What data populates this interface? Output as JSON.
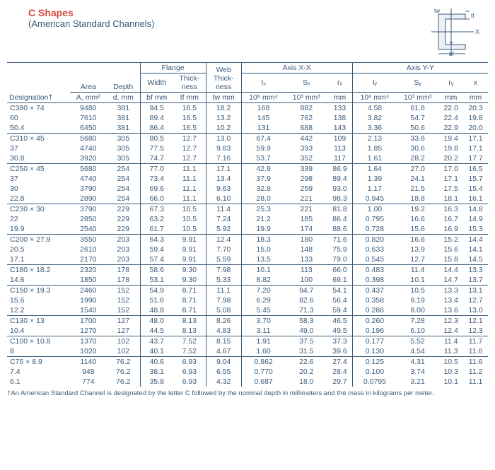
{
  "title": {
    "main": "C Shapes",
    "sub": "(American Standard Channels)"
  },
  "diagram_labels": {
    "tf": "tf",
    "tw": "tw",
    "x": "X",
    "y": "Y",
    "bf": "bf"
  },
  "headers": {
    "flange": "Flange",
    "web": "Web",
    "axis_xx": "Axis X-X",
    "axis_yy": "Axis Y-Y",
    "designation": "Designation†",
    "area": "Area",
    "depth": "Depth",
    "width": "Width",
    "thick": "Thick-",
    "ness": "ness",
    "A": "A, mm²",
    "d": "d, mm",
    "bf": "bf mm",
    "tf": "tf mm",
    "tw": "tw mm",
    "Ix": "Iₓ",
    "Ix_u": "10⁶ mm⁴",
    "Sx": "Sₓ",
    "Sx_u": "10³ mm³",
    "rx": "rₓ",
    "rx_u": "mm",
    "Iy": "Iᵧ",
    "Iy_u": "10⁶ mm⁴",
    "Sy": "Sᵧ",
    "Sy_u": "10³ mm³",
    "ry": "rᵧ",
    "ry_u": "mm",
    "xbar": "x",
    "xbar_u": "mm"
  },
  "groups": [
    {
      "rows": [
        [
          "C380 × 74",
          "9480",
          "381",
          "94.5",
          "16.5",
          "18.2",
          "168",
          "882",
          "133",
          "4.58",
          "61.8",
          "22.0",
          "20.3"
        ],
        [
          "60",
          "7610",
          "381",
          "89.4",
          "16.5",
          "13.2",
          "145",
          "762",
          "138",
          "3.82",
          "54.7",
          "22.4",
          "19.8"
        ],
        [
          "50.4",
          "6450",
          "381",
          "86.4",
          "16.5",
          "10.2",
          "131",
          "688",
          "143",
          "3.36",
          "50.6",
          "22.9",
          "20.0"
        ]
      ]
    },
    {
      "rows": [
        [
          "C310 × 45",
          "5680",
          "305",
          "80.5",
          "12.7",
          "13.0",
          "67.4",
          "442",
          "109",
          "2.13",
          "33.6",
          "19.4",
          "17.1"
        ],
        [
          "37",
          "4740",
          "305",
          "77.5",
          "12.7",
          "9.83",
          "59.9",
          "393",
          "113",
          "1.85",
          "30.6",
          "19.8",
          "17.1"
        ],
        [
          "30.8",
          "3920",
          "305",
          "74.7",
          "12.7",
          "7.16",
          "53.7",
          "352",
          "117",
          "1.61",
          "28.2",
          "20.2",
          "17.7"
        ]
      ]
    },
    {
      "rows": [
        [
          "C250 × 45",
          "5680",
          "254",
          "77.0",
          "11.1",
          "17.1",
          "42.9",
          "339",
          "86.9",
          "1.64",
          "27.0",
          "17.0",
          "16.5"
        ],
        [
          "37",
          "4740",
          "254",
          "73.4",
          "11.1",
          "13.4",
          "37.9",
          "298",
          "89.4",
          "1.39",
          "24.1",
          "17.1",
          "15.7"
        ],
        [
          "30",
          "3790",
          "254",
          "69.6",
          "11.1",
          "9.63",
          "32.8",
          "259",
          "93.0",
          "1.17",
          "21.5",
          "17.5",
          "15.4"
        ],
        [
          "22.8",
          "2890",
          "254",
          "66.0",
          "11.1",
          "6.10",
          "28.0",
          "221",
          "98.3",
          "0.945",
          "18.8",
          "18.1",
          "16.1"
        ]
      ]
    },
    {
      "rows": [
        [
          "C230 × 30",
          "3790",
          "229",
          "67.3",
          "10.5",
          "11.4",
          "25.3",
          "221",
          "81.8",
          "1.00",
          "19.2",
          "16.3",
          "14.8"
        ],
        [
          "22",
          "2850",
          "229",
          "63.2",
          "10.5",
          "7.24",
          "21.2",
          "185",
          "86.4",
          "0.795",
          "16.6",
          "16.7",
          "14.9"
        ],
        [
          "19.9",
          "2540",
          "229",
          "61.7",
          "10.5",
          "5.92",
          "19.9",
          "174",
          "88.6",
          "0.728",
          "15.6",
          "16.9",
          "15.3"
        ]
      ]
    },
    {
      "rows": [
        [
          "C200 × 27.9",
          "3550",
          "203",
          "64.3",
          "9.91",
          "12.4",
          "18.3",
          "180",
          "71.6",
          "0.820",
          "16.6",
          "15.2",
          "14.4"
        ],
        [
          "20.5",
          "2610",
          "203",
          "59.4",
          "9.91",
          "7.70",
          "15.0",
          "148",
          "75.9",
          "0.633",
          "13.9",
          "15.6",
          "14.1"
        ],
        [
          "17.1",
          "2170",
          "203",
          "57.4",
          "9.91",
          "5.59",
          "13.5",
          "133",
          "79.0",
          "0.545",
          "12.7",
          "15.8",
          "14.5"
        ]
      ]
    },
    {
      "rows": [
        [
          "C180 × 18.2",
          "2320",
          "178",
          "58.6",
          "9.30",
          "7.98",
          "10.1",
          "113",
          "66.0",
          "0.483",
          "11.4",
          "14.4",
          "13.3"
        ],
        [
          "14.6",
          "1850",
          "178",
          "53.1",
          "9.30",
          "5.33",
          "8.82",
          "100",
          "69.1",
          "0.398",
          "10.1",
          "14.7",
          "13.7"
        ]
      ]
    },
    {
      "rows": [
        [
          "C150 × 19.3",
          "2460",
          "152",
          "54.9",
          "8.71",
          "11.1",
          "7.20",
          "94.7",
          "54.1",
          "0.437",
          "10.5",
          "13.3",
          "13.1"
        ],
        [
          "15.6",
          "1990",
          "152",
          "51.6",
          "8.71",
          "7.98",
          "6.29",
          "82.6",
          "56.4",
          "0.358",
          "9.19",
          "13.4",
          "12.7"
        ],
        [
          "12.2",
          "1540",
          "152",
          "48.8",
          "8.71",
          "5.08",
          "5.45",
          "71.3",
          "59.4",
          "0.286",
          "8.00",
          "13.6",
          "13.0"
        ]
      ]
    },
    {
      "rows": [
        [
          "C130 × 13",
          "1700",
          "127",
          "48.0",
          "8.13",
          "8.26",
          "3.70",
          "58.3",
          "46.5",
          "0.260",
          "7.28",
          "12.3",
          "12.1"
        ],
        [
          "10.4",
          "1270",
          "127",
          "44.5",
          "8.13",
          "4.83",
          "3.11",
          "49.0",
          "49.5",
          "0.196",
          "6.10",
          "12.4",
          "12.3"
        ]
      ]
    },
    {
      "rows": [
        [
          "C100 × 10.8",
          "1370",
          "102",
          "43.7",
          "7.52",
          "8.15",
          "1.91",
          "37.5",
          "37.3",
          "0.177",
          "5.52",
          "11.4",
          "11.7"
        ],
        [
          "8",
          "1020",
          "102",
          "40.1",
          "7.52",
          "4.67",
          "1.60",
          "31.5",
          "39.6",
          "0.130",
          "4.54",
          "11.3",
          "11.6"
        ]
      ]
    },
    {
      "rows": [
        [
          "C75 × 8.9",
          "1140",
          "76.2",
          "40.6",
          "6.93",
          "9.04",
          "0.862",
          "22.6",
          "27.4",
          "0.125",
          "4.31",
          "10.5",
          "11.6"
        ],
        [
          "7.4",
          "948",
          "76.2",
          "38.1",
          "6.93",
          "6.55",
          "0.770",
          "20.2",
          "28.4",
          "0.100",
          "3.74",
          "10.3",
          "11.2"
        ],
        [
          "6.1",
          "774",
          "76.2",
          "35.8",
          "6.93",
          "4.32",
          "0.687",
          "18.0",
          "29.7",
          "0.0795",
          "3.21",
          "10.1",
          "11.1"
        ]
      ]
    }
  ],
  "footnote": "†An American Standard Channel is designated by the letter C followed by the nominal depth in millimeters and the mass in kilograms per meter."
}
